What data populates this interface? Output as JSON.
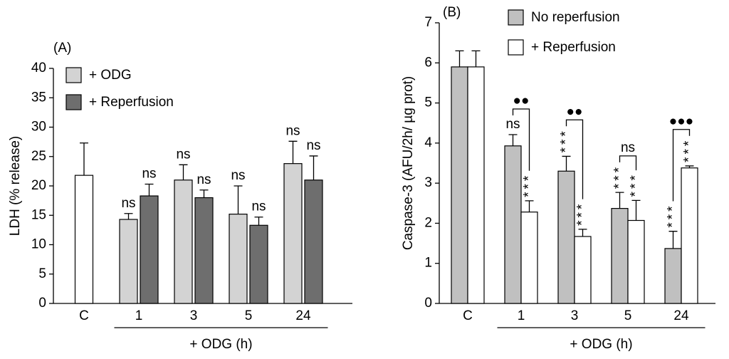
{
  "chart_data": [
    {
      "type": "bar",
      "panel_label": "(A)",
      "y_label": "LDH (% release)",
      "x_label": "+ ODG (h)",
      "categories": [
        "C",
        "1",
        "3",
        "5",
        "24"
      ],
      "control": {
        "color": "#ffffff",
        "values": [
          21.8,
          null,
          null,
          null,
          null
        ],
        "errors": [
          5.5,
          null,
          null,
          null,
          null
        ]
      },
      "series": [
        {
          "name": "+ ODG",
          "color": "#d3d3d3",
          "values": [
            null,
            14.3,
            21,
            15.2,
            23.8
          ],
          "errors": [
            null,
            1,
            2.6,
            4.8,
            3.8
          ],
          "annotations": [
            null,
            "ns",
            "ns",
            "ns",
            "ns"
          ]
        },
        {
          "name": "+ Reperfusion",
          "color": "#6e6e6e",
          "values": [
            null,
            18.3,
            18,
            13.3,
            21
          ],
          "errors": [
            null,
            2,
            1.3,
            1.4,
            4.1
          ],
          "annotations": [
            null,
            "ns",
            "ns",
            "ns",
            "ns"
          ]
        }
      ],
      "ylim": [
        0,
        40
      ],
      "yticks": [
        0,
        5,
        10,
        15,
        20,
        25,
        30,
        35,
        40
      ],
      "legend": "upper left"
    },
    {
      "type": "bar",
      "panel_label": "(B)",
      "y_label": "Caspase-3 (AFU/2h/ µg prot)",
      "x_label": "+ ODG (h)",
      "categories": [
        "C",
        "1",
        "3",
        "5",
        "24"
      ],
      "series": [
        {
          "name": "No reperfusion",
          "color": "#c0c0c0",
          "values": [
            5.9,
            3.93,
            3.3,
            2.37,
            1.37
          ],
          "errors": [
            0.4,
            0.28,
            0.37,
            0.4,
            0.43
          ],
          "annotations": [
            null,
            "ns",
            "***",
            "***",
            "***"
          ]
        },
        {
          "name": "+ Reperfusion",
          "color": "#ffffff",
          "values": [
            5.9,
            2.28,
            1.67,
            2.07,
            3.38
          ],
          "errors": [
            0.4,
            0.28,
            0.18,
            0.5,
            0.05
          ],
          "annotations": [
            null,
            "***",
            "***",
            "***",
            "***"
          ]
        }
      ],
      "brackets": [
        null,
        "●●",
        "●●",
        "ns",
        "●●●"
      ],
      "ylim": [
        0,
        7
      ],
      "yticks": [
        0,
        1,
        2,
        3,
        4,
        5,
        6,
        7
      ],
      "legend": "upper left"
    }
  ]
}
